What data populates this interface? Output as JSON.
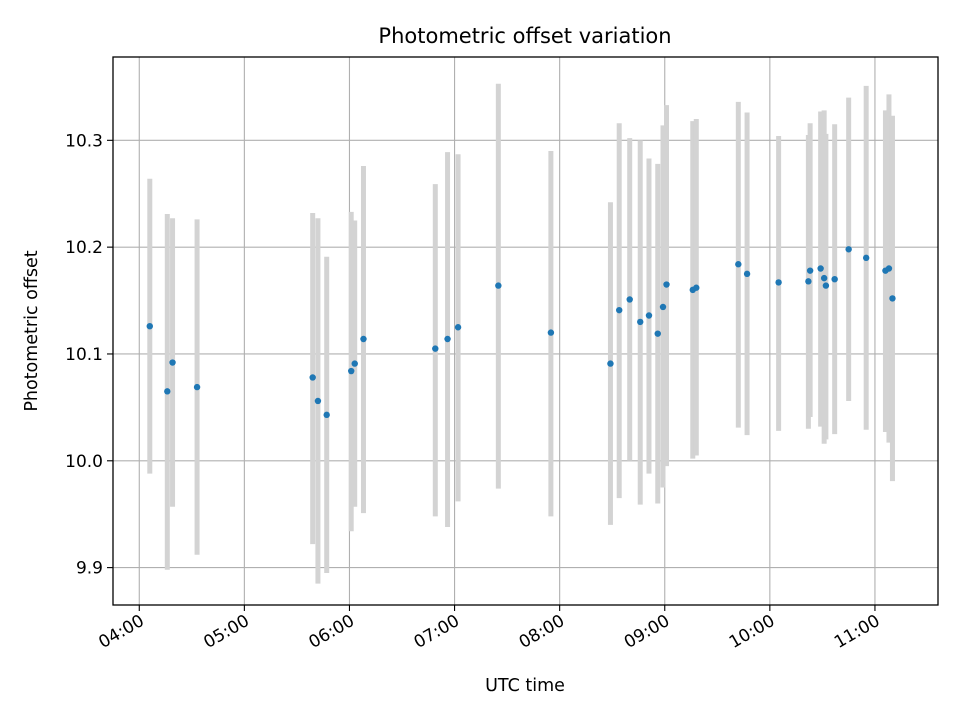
{
  "chart_data": {
    "type": "scatter",
    "title": "Photometric offset variation",
    "xlabel": "UTC time",
    "ylabel": "Photometric offset",
    "x_tick_labels": [
      "04:00",
      "05:00",
      "06:00",
      "07:00",
      "08:00",
      "09:00",
      "10:00",
      "11:00"
    ],
    "y_tick_labels": [
      "9.9",
      "10.0",
      "10.1",
      "10.2",
      "10.3"
    ],
    "xlim": [
      "03:45",
      "11:36"
    ],
    "ylim": [
      9.865,
      10.378
    ],
    "grid": true,
    "colors": {
      "point": "#1f77b4",
      "errorbar": "#d3d3d3",
      "grid": "#b0b0b0"
    },
    "points": [
      {
        "x": "04:06",
        "y": 10.126,
        "low": 9.988,
        "high": 10.264
      },
      {
        "x": "04:16",
        "y": 10.065,
        "low": 9.898,
        "high": 10.231
      },
      {
        "x": "04:19",
        "y": 10.092,
        "low": 9.957,
        "high": 10.227
      },
      {
        "x": "04:33",
        "y": 10.069,
        "low": 9.912,
        "high": 10.226
      },
      {
        "x": "05:39",
        "y": 10.078,
        "low": 9.922,
        "high": 10.232
      },
      {
        "x": "05:42",
        "y": 10.056,
        "low": 9.885,
        "high": 10.227
      },
      {
        "x": "05:47",
        "y": 10.043,
        "low": 9.895,
        "high": 10.191
      },
      {
        "x": "06:01",
        "y": 10.084,
        "low": 9.934,
        "high": 10.233
      },
      {
        "x": "06:03",
        "y": 10.091,
        "low": 9.957,
        "high": 10.225
      },
      {
        "x": "06:08",
        "y": 10.114,
        "low": 9.951,
        "high": 10.276
      },
      {
        "x": "06:49",
        "y": 10.105,
        "low": 9.948,
        "high": 10.259
      },
      {
        "x": "06:56",
        "y": 10.114,
        "low": 9.938,
        "high": 10.289
      },
      {
        "x": "07:02",
        "y": 10.125,
        "low": 9.962,
        "high": 10.287
      },
      {
        "x": "07:25",
        "y": 10.164,
        "low": 9.974,
        "high": 10.353
      },
      {
        "x": "07:55",
        "y": 10.12,
        "low": 9.948,
        "high": 10.29
      },
      {
        "x": "08:29",
        "y": 10.091,
        "low": 9.94,
        "high": 10.242
      },
      {
        "x": "08:34",
        "y": 10.141,
        "low": 9.965,
        "high": 10.316
      },
      {
        "x": "08:40",
        "y": 10.151,
        "low": 10.0,
        "high": 10.302
      },
      {
        "x": "08:46",
        "y": 10.13,
        "low": 9.959,
        "high": 10.3
      },
      {
        "x": "08:51",
        "y": 10.136,
        "low": 9.988,
        "high": 10.283
      },
      {
        "x": "08:56",
        "y": 10.119,
        "low": 9.96,
        "high": 10.278
      },
      {
        "x": "08:59",
        "y": 10.144,
        "low": 9.975,
        "high": 10.314
      },
      {
        "x": "09:01",
        "y": 10.165,
        "low": 9.995,
        "high": 10.333
      },
      {
        "x": "09:16",
        "y": 10.16,
        "low": 10.002,
        "high": 10.318
      },
      {
        "x": "09:18",
        "y": 10.162,
        "low": 10.005,
        "high": 10.32
      },
      {
        "x": "09:42",
        "y": 10.184,
        "low": 10.031,
        "high": 10.336
      },
      {
        "x": "09:47",
        "y": 10.175,
        "low": 10.024,
        "high": 10.326
      },
      {
        "x": "10:05",
        "y": 10.167,
        "low": 10.028,
        "high": 10.304
      },
      {
        "x": "10:22",
        "y": 10.168,
        "low": 10.03,
        "high": 10.305
      },
      {
        "x": "10:23",
        "y": 10.178,
        "low": 10.041,
        "high": 10.316
      },
      {
        "x": "10:29",
        "y": 10.18,
        "low": 10.032,
        "high": 10.327
      },
      {
        "x": "10:31",
        "y": 10.171,
        "low": 10.016,
        "high": 10.328
      },
      {
        "x": "10:32",
        "y": 10.164,
        "low": 10.02,
        "high": 10.306
      },
      {
        "x": "10:37",
        "y": 10.17,
        "low": 10.025,
        "high": 10.315
      },
      {
        "x": "10:45",
        "y": 10.198,
        "low": 10.056,
        "high": 10.34
      },
      {
        "x": "10:55",
        "y": 10.19,
        "low": 10.029,
        "high": 10.351
      },
      {
        "x": "11:06",
        "y": 10.178,
        "low": 10.027,
        "high": 10.328
      },
      {
        "x": "11:08",
        "y": 10.18,
        "low": 10.017,
        "high": 10.343
      },
      {
        "x": "11:10",
        "y": 10.152,
        "low": 9.981,
        "high": 10.323
      }
    ]
  }
}
